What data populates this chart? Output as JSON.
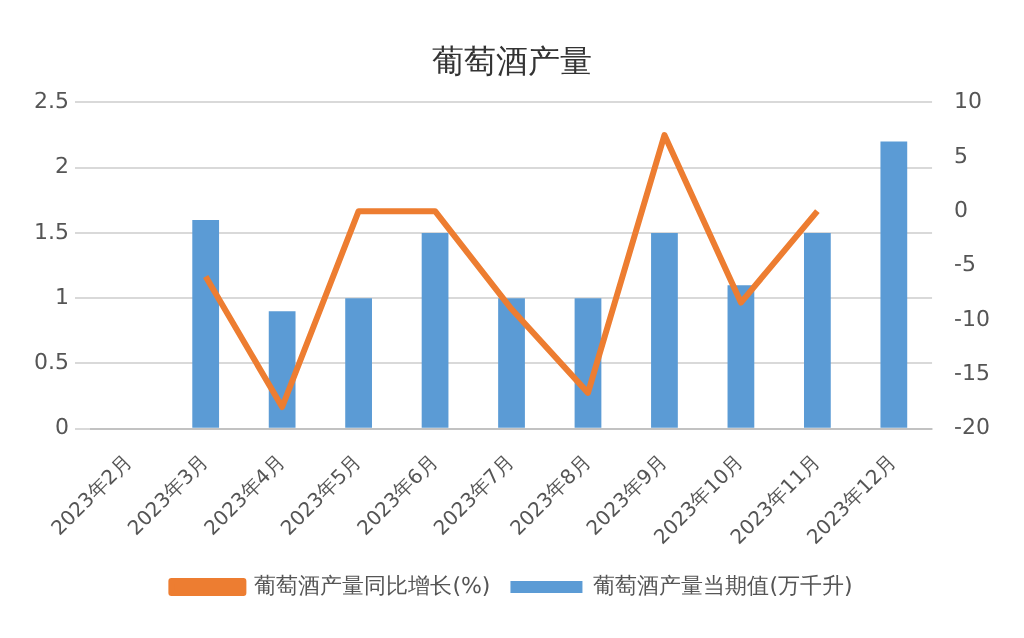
{
  "chart_data": {
    "type": "bar",
    "title": "葡萄酒产量",
    "categories": [
      "2023年2月",
      "2023年3月",
      "2023年4月",
      "2023年5月",
      "2023年6月",
      "2023年7月",
      "2023年8月",
      "2023年9月",
      "2023年10月",
      "2023年11月",
      "2023年12月"
    ],
    "series": [
      {
        "name": "葡萄酒产量当期值(万千升)",
        "color": "#5b9bd5",
        "values": [
          null,
          1.6,
          0.9,
          1.0,
          1.5,
          1.0,
          1.0,
          1.5,
          1.1,
          1.5,
          2.2
        ]
      },
      {
        "name": "葡萄酒产量同比增长(%)",
        "type": "line",
        "axis": "y2",
        "color": "#ed7d31",
        "values": [
          null,
          -6,
          -18,
          0,
          0,
          -9,
          -16.7,
          7,
          -8.4,
          0,
          null
        ]
      }
    ],
    "ylim": [
      0,
      2.5
    ],
    "yticks": [
      0,
      0.5,
      1,
      1.5,
      2,
      2.5
    ],
    "y2lim": [
      -20,
      10
    ],
    "y2ticks": [
      -20,
      -15,
      -10,
      -5,
      0,
      5,
      10
    ],
    "grid": "y",
    "legend": "bottom",
    "marker": "none"
  }
}
